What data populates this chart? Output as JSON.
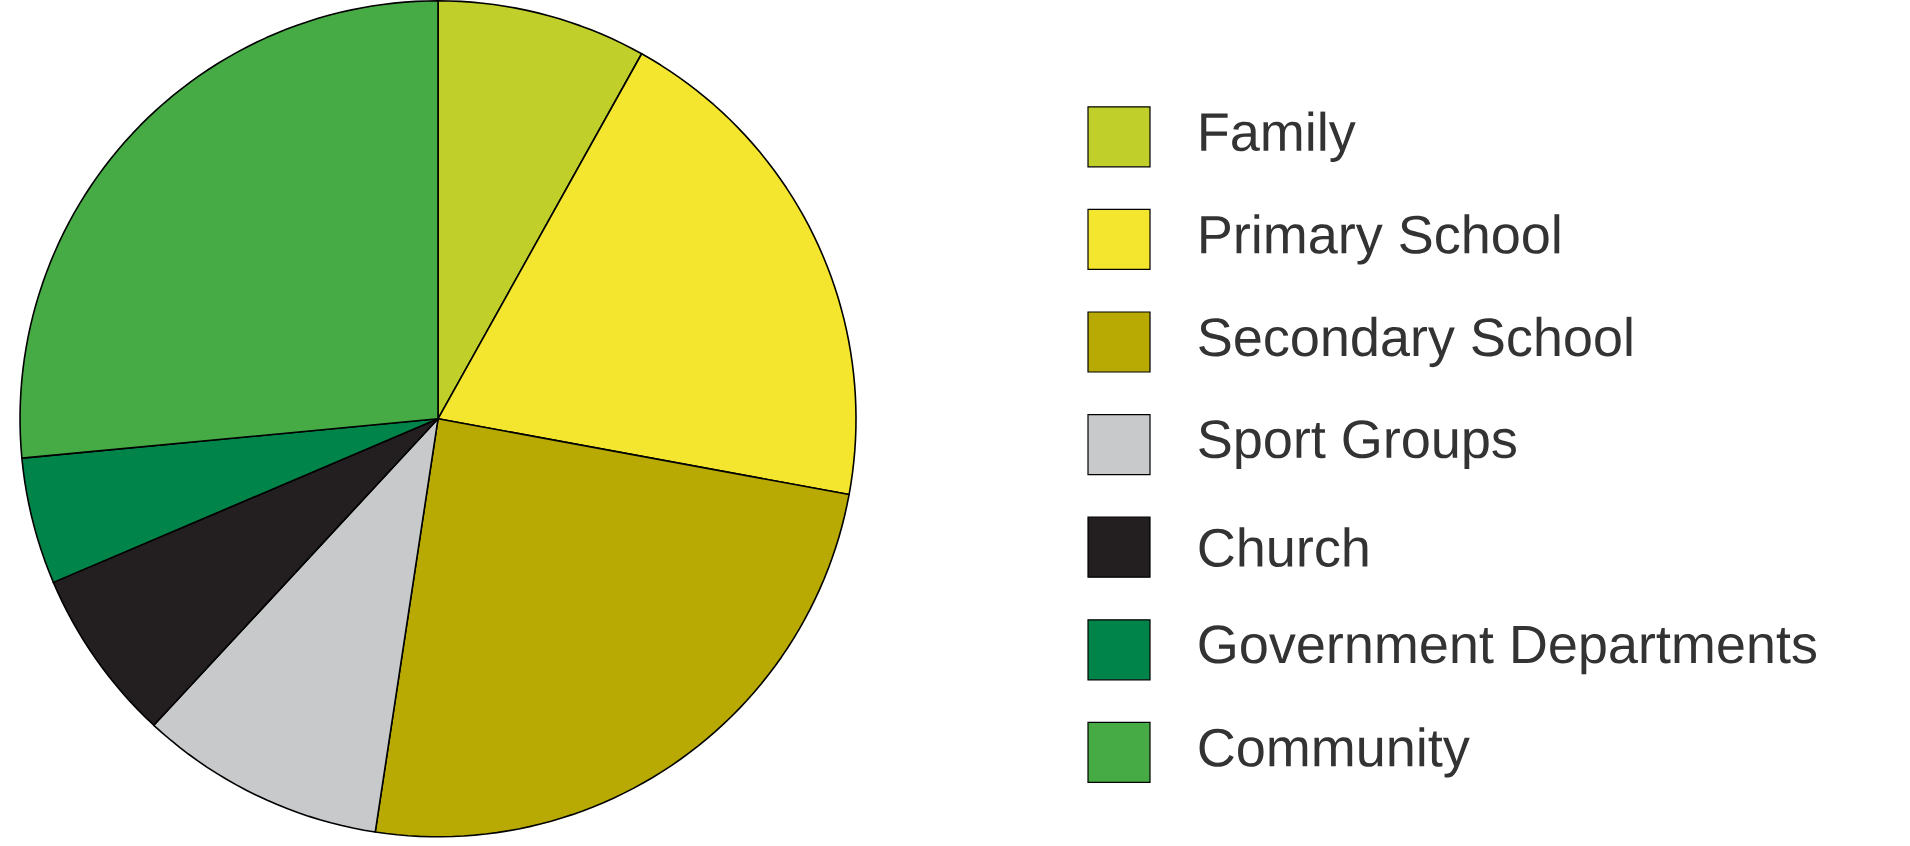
{
  "chart_data": {
    "type": "pie",
    "categories": [
      "Family",
      "Primary School",
      "Secondary School",
      "Sport Groups",
      "Church",
      "Government Departments",
      "Community"
    ],
    "values": [
      8.1,
      19.8,
      24.5,
      9.5,
      6.7,
      4.9,
      26.5
    ],
    "colors": [
      "#c0cf2a",
      "#f4e62e",
      "#b8aa03",
      "#c8c9cb",
      "#231f20",
      "#00844a",
      "#46ab44"
    ],
    "legend": "right"
  }
}
